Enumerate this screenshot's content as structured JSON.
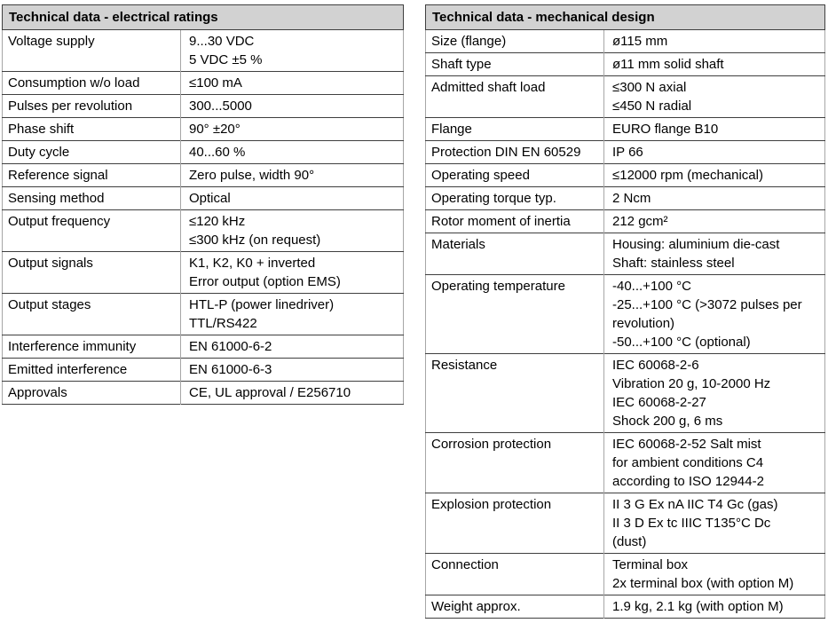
{
  "colors": {
    "header_bg": "#d2d2d2",
    "border_dark": "#3f3f3f",
    "border_light": "#a6a6a6",
    "text": "#000000",
    "page_bg": "#ffffff"
  },
  "tables": [
    {
      "title": "Technical data - electrical ratings",
      "rows": [
        {
          "label": "Voltage supply",
          "value": "9...30 VDC\n5 VDC ±5 %"
        },
        {
          "label": "Consumption w/o load",
          "value": "≤100 mA"
        },
        {
          "label": "Pulses per revolution",
          "value": "300...5000"
        },
        {
          "label": "Phase shift",
          "value": "90° ±20°"
        },
        {
          "label": "Duty cycle",
          "value": "40...60 %"
        },
        {
          "label": "Reference signal",
          "value": "Zero pulse, width 90°"
        },
        {
          "label": "Sensing method",
          "value": "Optical"
        },
        {
          "label": "Output frequency",
          "value": "≤120 kHz\n≤300 kHz (on request)"
        },
        {
          "label": "Output signals",
          "value": "K1, K2, K0 + inverted\nError output (option EMS)"
        },
        {
          "label": "Output stages",
          "value": "HTL-P (power linedriver)\nTTL/RS422"
        },
        {
          "label": "Interference immunity",
          "value": "EN 61000-6-2"
        },
        {
          "label": "Emitted interference",
          "value": "EN 61000-6-3"
        },
        {
          "label": "Approvals",
          "value": "CE, UL approval / E256710"
        }
      ]
    },
    {
      "title": "Technical data - mechanical design",
      "rows": [
        {
          "label": "Size (flange)",
          "value": "ø115 mm"
        },
        {
          "label": "Shaft type",
          "value": "ø11 mm solid shaft"
        },
        {
          "label": "Admitted shaft load",
          "value": "≤300 N axial\n≤450 N radial"
        },
        {
          "label": "Flange",
          "value": "EURO flange B10"
        },
        {
          "label": "Protection DIN EN 60529",
          "value": "IP 66"
        },
        {
          "label": "Operating speed",
          "value": "≤12000 rpm (mechanical)"
        },
        {
          "label": "Operating torque typ.",
          "value": "2 Ncm"
        },
        {
          "label": "Rotor moment of inertia",
          "value": "212 gcm²"
        },
        {
          "label": "Materials",
          "value": "Housing: aluminium die-cast\nShaft: stainless steel"
        },
        {
          "label": "Operating temperature",
          "value": "-40...+100 °C\n-25...+100 °C (>3072 pulses per revolution)\n-50...+100 °C (optional)"
        },
        {
          "label": "Resistance",
          "value": "IEC 60068-2-6\nVibration 20 g, 10-2000 Hz\nIEC 60068-2-27\nShock 200 g, 6 ms"
        },
        {
          "label": "Corrosion protection",
          "value": "IEC 60068-2-52 Salt mist\nfor ambient conditions C4\naccording to ISO 12944-2"
        },
        {
          "label": "Explosion protection",
          "value": "II 3 G Ex nA IIC T4 Gc (gas)\nII 3 D Ex tc IIIC T135°C Dc\n(dust)"
        },
        {
          "label": "Connection",
          "value": "Terminal box\n2x terminal box (with option M)"
        },
        {
          "label": "Weight approx.",
          "value": "1.9 kg, 2.1 kg (with option M)"
        }
      ]
    }
  ]
}
